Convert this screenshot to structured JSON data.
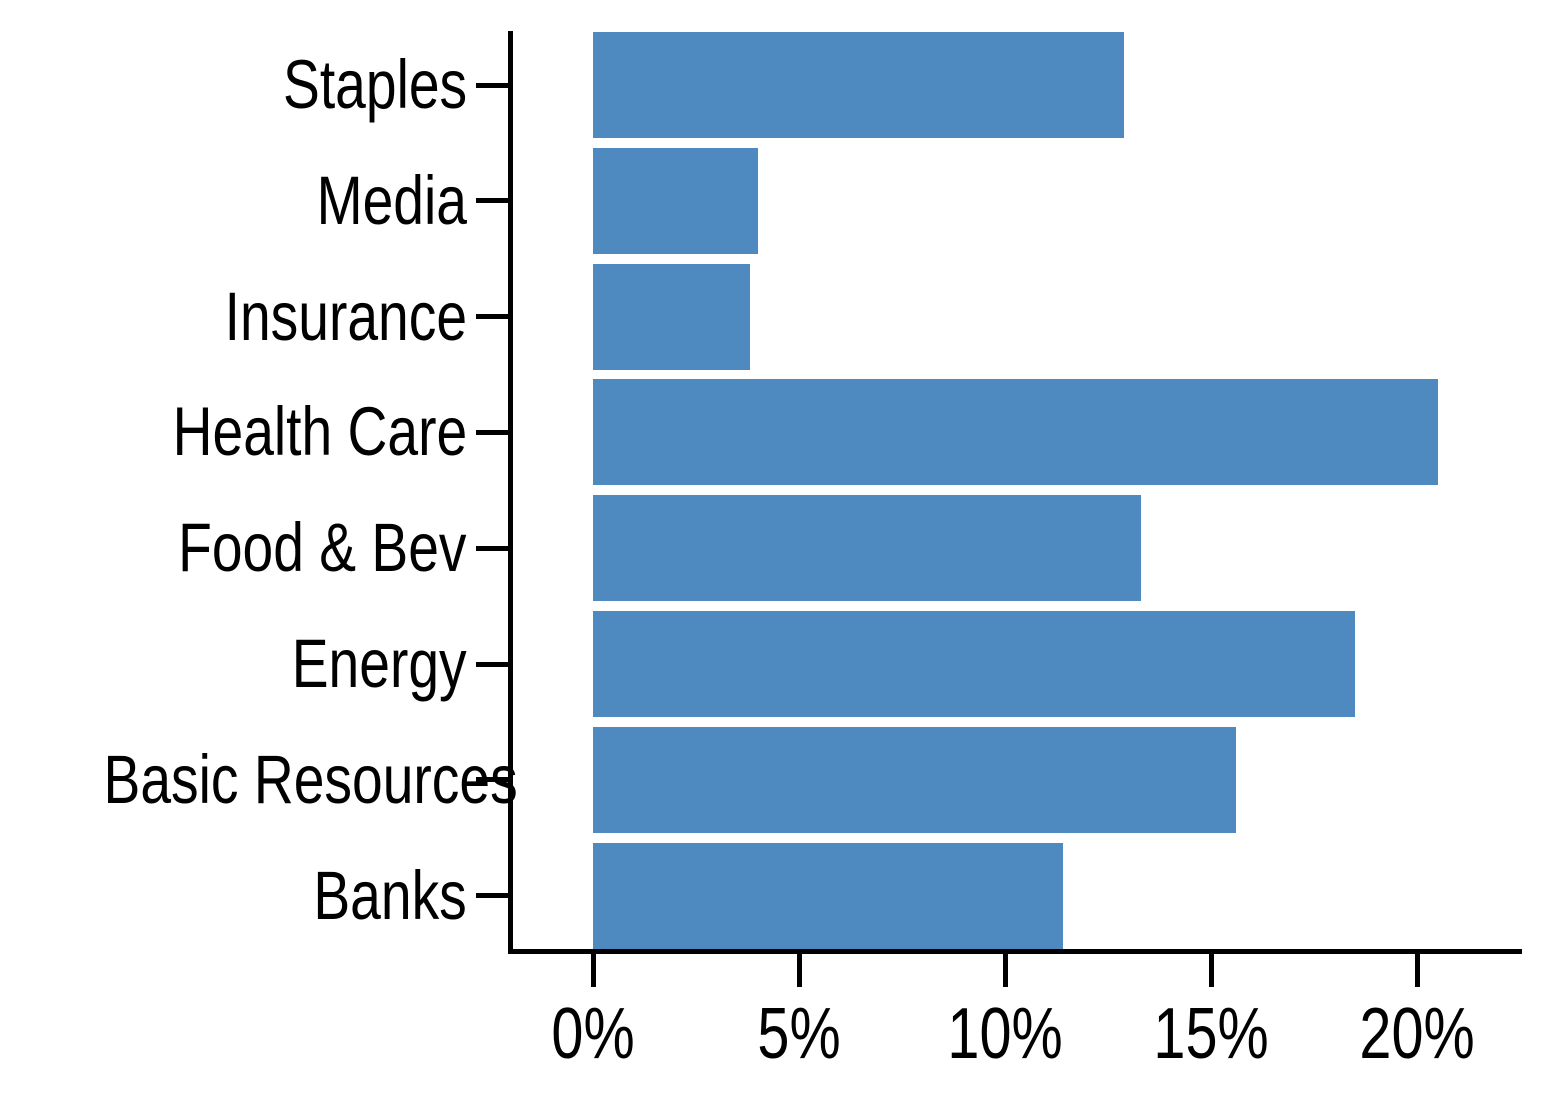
{
  "chart_data": {
    "type": "bar",
    "orientation": "horizontal",
    "title": "",
    "categories": [
      "Staples",
      "Media",
      "Insurance",
      "Health Care",
      "Food & Bev",
      "Energy",
      "Basic Resources",
      "Banks"
    ],
    "values": [
      12.9,
      4.0,
      3.8,
      20.5,
      13.3,
      18.5,
      15.6,
      11.4
    ],
    "unit": "%",
    "x_ticks": [
      0,
      5,
      10,
      15,
      20
    ],
    "x_tick_labels": [
      "0%",
      "5%",
      "10%",
      "15%",
      "20%"
    ],
    "xlim": [
      0,
      22.5
    ],
    "grid": false,
    "legend": null,
    "bar_color": "#4E8ABF",
    "axis_color": "#000000",
    "text_color": "#000000",
    "background_color": "#FFFFFF"
  }
}
